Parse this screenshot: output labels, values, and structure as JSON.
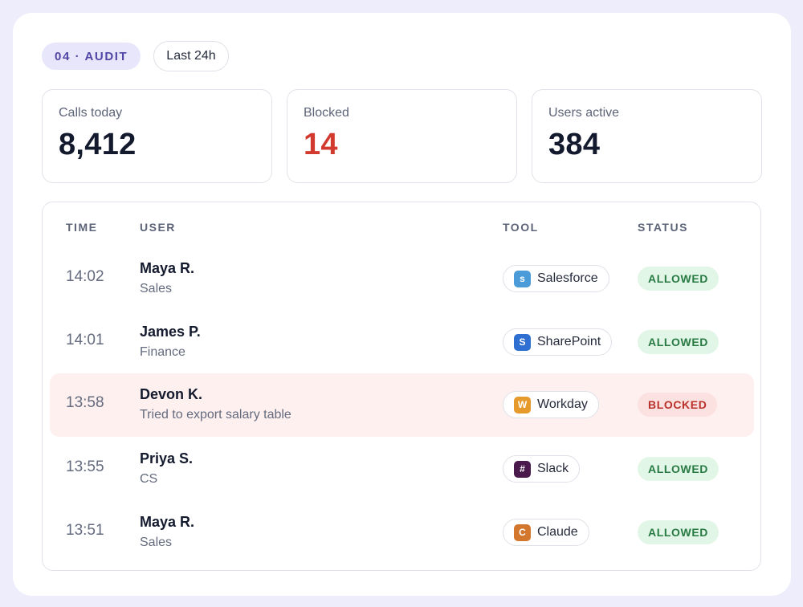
{
  "header": {
    "section_chip": "04 · AUDIT",
    "range_chip": "Last 24h"
  },
  "stats": [
    {
      "label": "Calls today",
      "value": "8,412"
    },
    {
      "label": "Blocked",
      "value": "14",
      "value_color": "#d33a2f"
    },
    {
      "label": "Users active",
      "value": "384"
    }
  ],
  "table": {
    "columns": {
      "time": "TIME",
      "user": "USER",
      "tool": "TOOL",
      "status": "STATUS"
    },
    "rows": [
      {
        "time": "14:02",
        "name": "Maya R.",
        "sub": "Sales",
        "tool": "Salesforce",
        "tool_icon": "s",
        "tool_icon_name": "salesforce-icon",
        "tool_color": "#4a9bd8",
        "status": "ALLOWED"
      },
      {
        "time": "14:01",
        "name": "James P.",
        "sub": "Finance",
        "tool": "SharePoint",
        "tool_icon": "S",
        "tool_icon_name": "sharepoint-icon",
        "tool_color": "#2f6fd1",
        "status": "ALLOWED"
      },
      {
        "time": "13:58",
        "name": "Devon K.",
        "sub": "Tried to export salary table",
        "tool": "Workday",
        "tool_icon": "W",
        "tool_icon_name": "workday-icon",
        "tool_color": "#e79a2c",
        "status": "BLOCKED"
      },
      {
        "time": "13:55",
        "name": "Priya S.",
        "sub": "CS",
        "tool": "Slack",
        "tool_icon": "#",
        "tool_icon_name": "slack-icon",
        "tool_color": "#4a1a4c",
        "status": "ALLOWED"
      },
      {
        "time": "13:51",
        "name": "Maya R.",
        "sub": "Sales",
        "tool": "Claude",
        "tool_icon": "C",
        "tool_icon_name": "claude-icon",
        "tool_color": "#d4772e",
        "status": "ALLOWED"
      }
    ]
  },
  "colors": {
    "allowed_bg": "#e2f6e7",
    "allowed_text": "#287a43",
    "blocked_bg": "#fbe2e0",
    "blocked_text": "#b9302a",
    "blocked_row_bg": "#fdf0ef",
    "accent_chip_bg": "#e7e6fb",
    "accent_chip_text": "#5145a6"
  }
}
